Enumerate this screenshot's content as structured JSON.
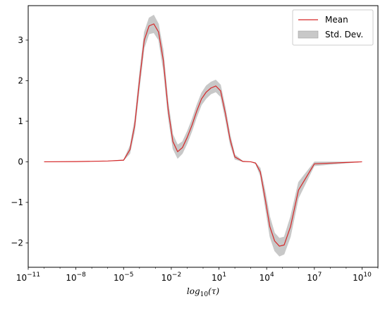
{
  "chart_data": {
    "type": "line",
    "xlabel": "log10(τ)",
    "xlabel_parts": {
      "base": "log",
      "sub": "10",
      "arg": "(τ)"
    },
    "ylabel": "",
    "title": "",
    "x_scale": "log",
    "xlim_exp": [
      -11,
      11
    ],
    "ylim": [
      -2.6,
      3.85
    ],
    "x_ticks": [
      {
        "exp": -11,
        "label_base": "10",
        "label_exp": "−11"
      },
      {
        "exp": -8,
        "label_base": "10",
        "label_exp": "−8"
      },
      {
        "exp": -5,
        "label_base": "10",
        "label_exp": "−5"
      },
      {
        "exp": -2,
        "label_base": "10",
        "label_exp": "−2"
      },
      {
        "exp": 1,
        "label_base": "10",
        "label_exp": "1"
      },
      {
        "exp": 4,
        "label_base": "10",
        "label_exp": "4"
      },
      {
        "exp": 7,
        "label_base": "10",
        "label_exp": "7"
      },
      {
        "exp": 10,
        "label_base": "10",
        "label_exp": "10"
      }
    ],
    "y_ticks": [
      {
        "value": 3,
        "label": "3"
      },
      {
        "value": 2,
        "label": "2"
      },
      {
        "value": 1,
        "label": "1"
      },
      {
        "value": 0,
        "label": "0"
      },
      {
        "value": -1,
        "label": "−1"
      },
      {
        "value": -2,
        "label": "−2"
      }
    ],
    "grid": false,
    "legend_position": "top-right",
    "series": [
      {
        "name": "Mean",
        "kind": "line",
        "color": "#d62728",
        "x_exp": [
          -10,
          -8,
          -6,
          -5,
          -4.6,
          -4.3,
          -4.0,
          -3.7,
          -3.4,
          -3.1,
          -2.8,
          -2.5,
          -2.2,
          -1.9,
          -1.6,
          -1.3,
          -1.0,
          -0.7,
          -0.4,
          -0.1,
          0.2,
          0.5,
          0.8,
          1.1,
          1.4,
          1.7,
          2.0,
          2.5,
          3.0,
          3.3,
          3.6,
          3.9,
          4.2,
          4.5,
          4.8,
          5.1,
          5.5,
          6.0,
          7.0,
          10.0
        ],
        "y": [
          0,
          0.005,
          0.02,
          0.04,
          0.3,
          0.9,
          2.0,
          3.0,
          3.35,
          3.4,
          3.2,
          2.5,
          1.3,
          0.5,
          0.25,
          0.35,
          0.6,
          0.9,
          1.25,
          1.55,
          1.72,
          1.82,
          1.87,
          1.75,
          1.2,
          0.55,
          0.12,
          0.01,
          0,
          -0.03,
          -0.25,
          -0.9,
          -1.6,
          -1.95,
          -2.08,
          -2.05,
          -1.6,
          -0.7,
          -0.05,
          0
        ]
      },
      {
        "name": "Std. Dev.",
        "kind": "band",
        "color": "#c8c8c8",
        "x_exp": [
          -10,
          -8,
          -6,
          -5,
          -4.6,
          -4.3,
          -4.0,
          -3.7,
          -3.4,
          -3.1,
          -2.8,
          -2.5,
          -2.2,
          -1.9,
          -1.6,
          -1.3,
          -1.0,
          -0.7,
          -0.4,
          -0.1,
          0.2,
          0.5,
          0.8,
          1.1,
          1.4,
          1.7,
          2.0,
          2.5,
          3.0,
          3.3,
          3.6,
          3.9,
          4.2,
          4.5,
          4.8,
          5.1,
          5.5,
          6.0,
          7.0,
          10.0
        ],
        "upper": [
          0,
          0.005,
          0.02,
          0.05,
          0.4,
          1.05,
          2.2,
          3.2,
          3.55,
          3.62,
          3.4,
          2.75,
          1.5,
          0.68,
          0.42,
          0.5,
          0.75,
          1.05,
          1.4,
          1.7,
          1.88,
          1.97,
          2.02,
          1.9,
          1.35,
          0.68,
          0.18,
          0.02,
          0,
          -0.02,
          -0.15,
          -0.7,
          -1.35,
          -1.75,
          -1.88,
          -1.85,
          -1.35,
          -0.5,
          0,
          0
        ],
        "lower": [
          0,
          0.005,
          0.02,
          0.03,
          0.2,
          0.75,
          1.8,
          2.8,
          3.15,
          3.18,
          3.0,
          2.25,
          1.1,
          0.32,
          0.08,
          0.2,
          0.45,
          0.75,
          1.1,
          1.4,
          1.56,
          1.67,
          1.72,
          1.6,
          1.05,
          0.42,
          0.06,
          0,
          0,
          -0.05,
          -0.35,
          -1.1,
          -1.85,
          -2.2,
          -2.33,
          -2.28,
          -1.85,
          -0.9,
          -0.1,
          0
        ]
      }
    ]
  }
}
